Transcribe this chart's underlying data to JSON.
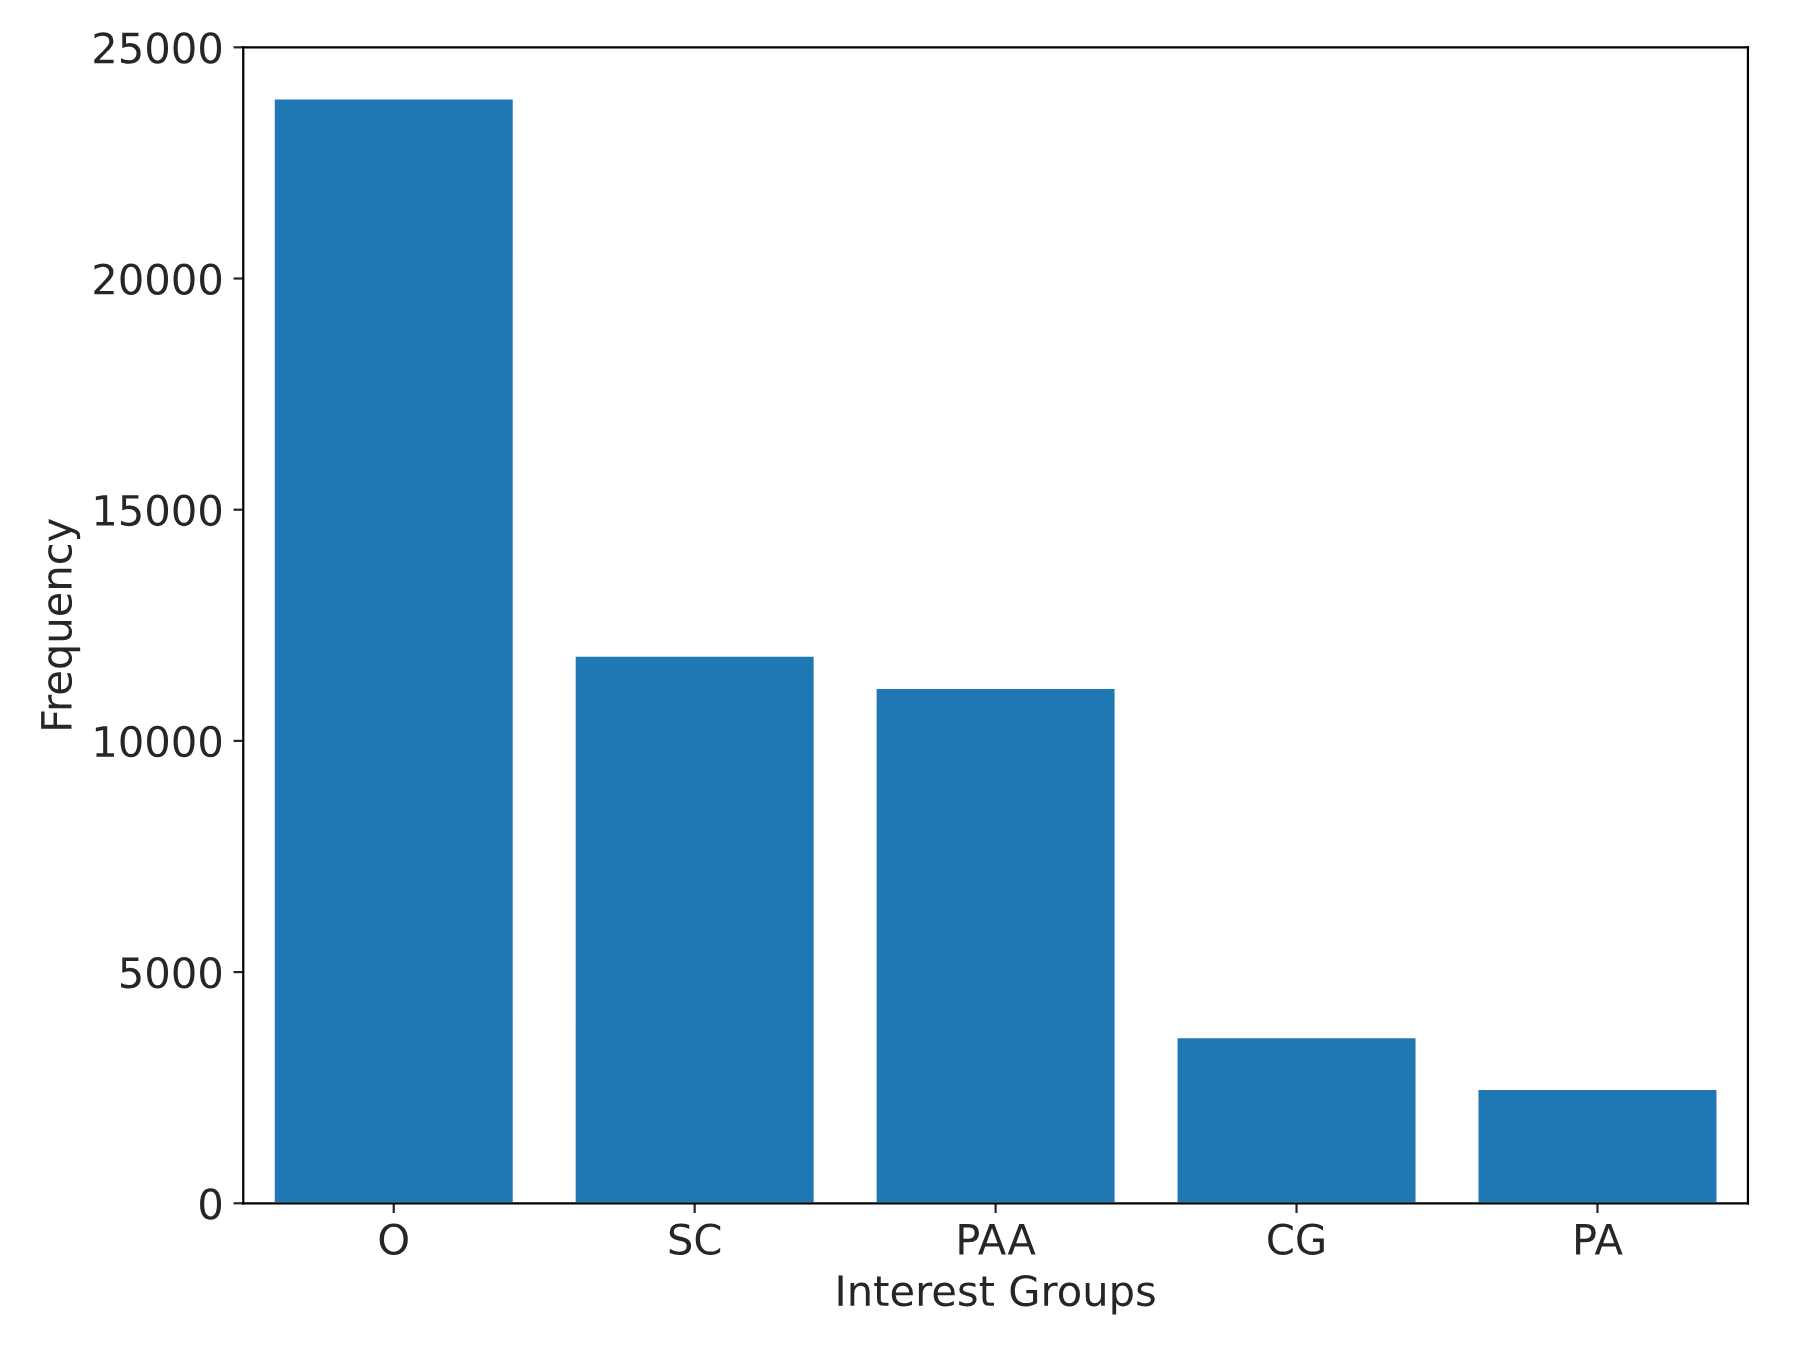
{
  "chart_data": {
    "type": "bar",
    "xlabel": "Interest Groups",
    "ylabel": "Frequency",
    "categories": [
      "O",
      "SC",
      "PAA",
      "CG",
      "PA"
    ],
    "values": [
      23900,
      11850,
      11150,
      3600,
      2480
    ],
    "color": "#1f77b4",
    "ylim": [
      0,
      25000
    ],
    "yticks": [
      0,
      5000,
      10000,
      15000,
      20000,
      25000
    ],
    "grid": false
  }
}
